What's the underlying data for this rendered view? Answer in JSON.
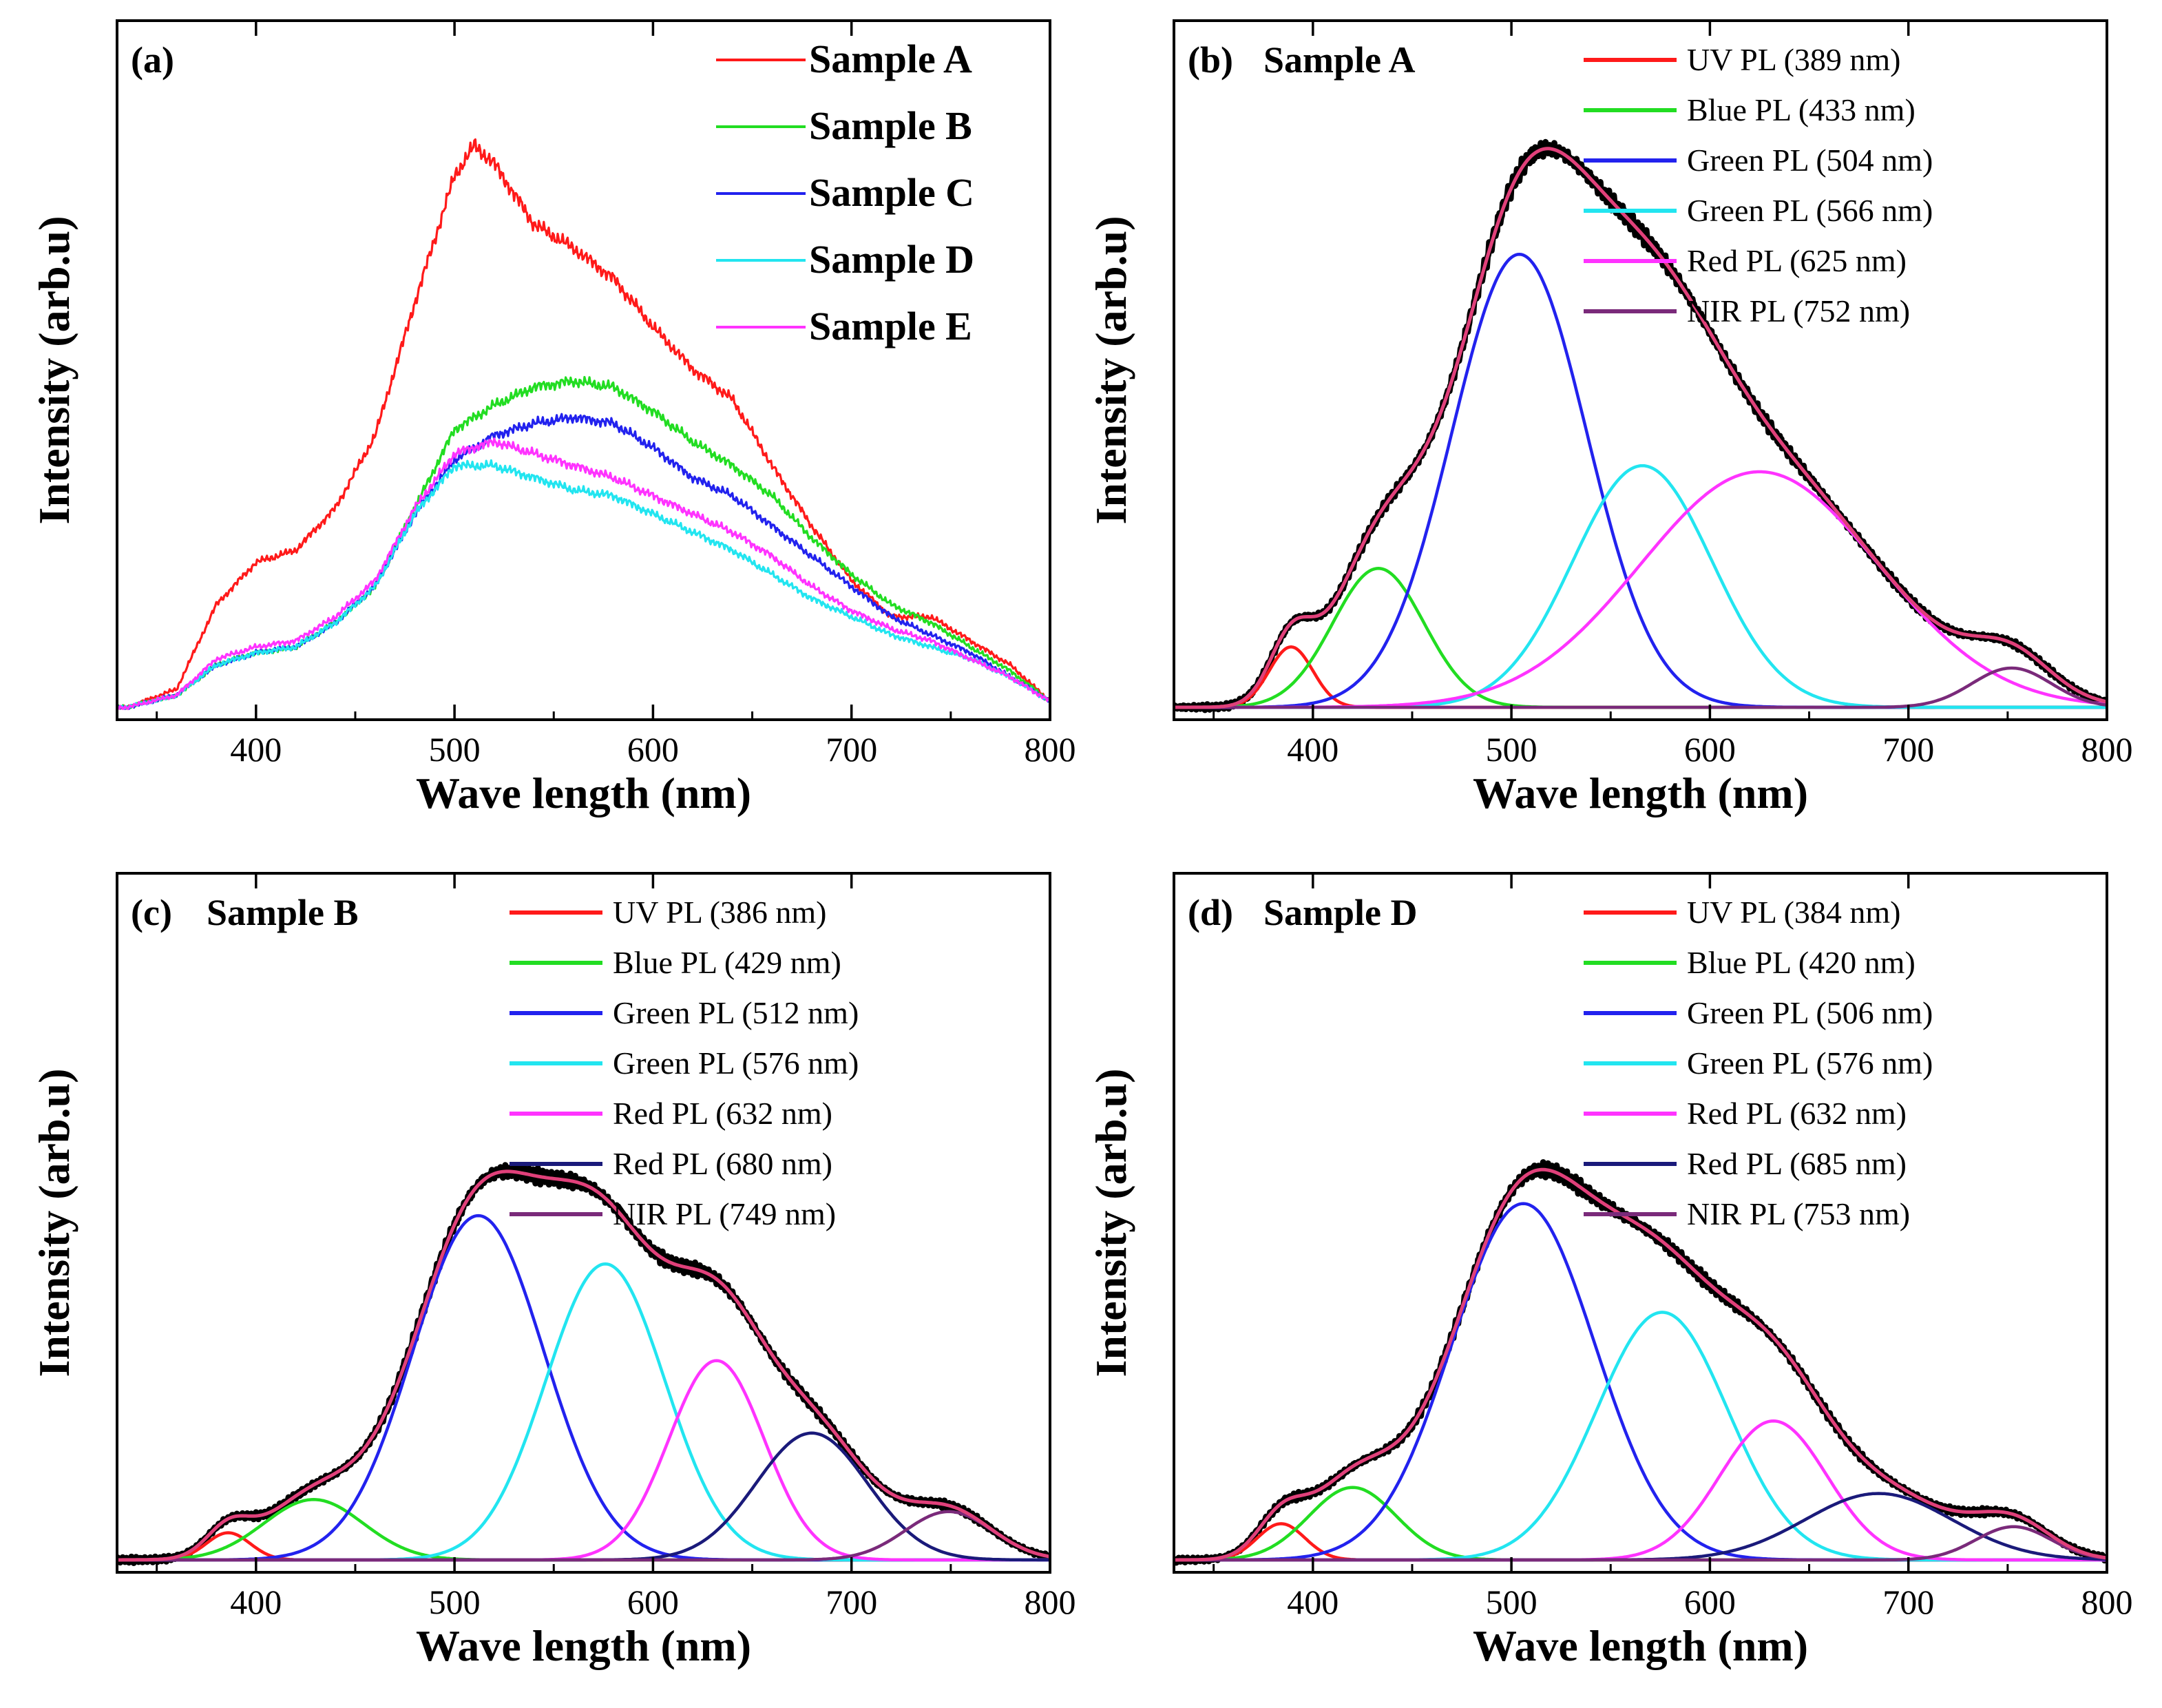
{
  "chart_data": [
    {
      "type": "line",
      "panel": "(a)",
      "title": "",
      "xlabel": "Wave length (nm)",
      "ylabel": "Intensity (arb.u)",
      "xlim": [
        330,
        800
      ],
      "ylim": [
        0,
        1.0
      ],
      "xticks": [
        400,
        500,
        600,
        700,
        800
      ],
      "yticks_shown": false,
      "legend_position": "top-right",
      "series": [
        {
          "name": "Sample A",
          "color": "#ff1a1a",
          "x": [
            335,
            360,
            380,
            400,
            420,
            440,
            460,
            480,
            500,
            510,
            520,
            540,
            560,
            580,
            600,
            620,
            640,
            660,
            680,
            700,
            720,
            740,
            760,
            780,
            800
          ],
          "values": [
            0.0,
            0.03,
            0.17,
            0.24,
            0.26,
            0.33,
            0.45,
            0.67,
            0.88,
            0.93,
            0.9,
            0.8,
            0.76,
            0.71,
            0.63,
            0.56,
            0.51,
            0.4,
            0.3,
            0.21,
            0.15,
            0.15,
            0.11,
            0.07,
            0.01
          ]
        },
        {
          "name": "Sample B",
          "color": "#22dd22",
          "x": [
            335,
            360,
            380,
            400,
            420,
            440,
            460,
            480,
            500,
            520,
            540,
            560,
            580,
            600,
            620,
            640,
            660,
            680,
            700,
            720,
            740,
            760,
            780,
            800
          ],
          "values": [
            0.0,
            0.02,
            0.07,
            0.09,
            0.1,
            0.14,
            0.2,
            0.33,
            0.46,
            0.5,
            0.53,
            0.54,
            0.53,
            0.49,
            0.44,
            0.4,
            0.35,
            0.28,
            0.22,
            0.17,
            0.14,
            0.1,
            0.06,
            0.01
          ]
        },
        {
          "name": "Sample C",
          "color": "#2222ee",
          "x": [
            335,
            360,
            380,
            400,
            420,
            440,
            460,
            480,
            500,
            520,
            540,
            560,
            580,
            600,
            620,
            640,
            660,
            680,
            700,
            720,
            740,
            760,
            780,
            800
          ],
          "values": [
            0.0,
            0.02,
            0.07,
            0.09,
            0.1,
            0.14,
            0.2,
            0.32,
            0.41,
            0.45,
            0.47,
            0.48,
            0.47,
            0.43,
            0.38,
            0.35,
            0.3,
            0.25,
            0.2,
            0.15,
            0.12,
            0.09,
            0.05,
            0.01
          ]
        },
        {
          "name": "Sample D",
          "color": "#22e5f0",
          "x": [
            335,
            360,
            380,
            400,
            420,
            440,
            460,
            480,
            500,
            520,
            540,
            560,
            580,
            600,
            620,
            640,
            660,
            680,
            700,
            720,
            740,
            760,
            780,
            800
          ],
          "values": [
            0.0,
            0.02,
            0.07,
            0.09,
            0.1,
            0.14,
            0.2,
            0.32,
            0.4,
            0.4,
            0.38,
            0.36,
            0.35,
            0.32,
            0.29,
            0.26,
            0.22,
            0.18,
            0.15,
            0.12,
            0.1,
            0.08,
            0.05,
            0.01
          ]
        },
        {
          "name": "Sample E",
          "color": "#ff33ff",
          "x": [
            335,
            360,
            380,
            400,
            420,
            440,
            460,
            480,
            500,
            520,
            540,
            560,
            580,
            600,
            620,
            640,
            660,
            680,
            700,
            720,
            740,
            760,
            780,
            800
          ],
          "values": [
            0.0,
            0.02,
            0.08,
            0.1,
            0.11,
            0.15,
            0.21,
            0.33,
            0.42,
            0.44,
            0.42,
            0.4,
            0.38,
            0.35,
            0.32,
            0.29,
            0.25,
            0.2,
            0.16,
            0.13,
            0.11,
            0.08,
            0.05,
            0.01
          ]
        }
      ]
    },
    {
      "type": "line",
      "panel": "(b)",
      "title": "Sample A",
      "xlabel": "Wave length (nm)",
      "ylabel": "Intensity (arb.u)",
      "xlim": [
        330,
        800
      ],
      "ylim": [
        0,
        1.0
      ],
      "xticks": [
        400,
        500,
        600,
        700,
        800
      ],
      "yticks_shown": false,
      "legend_position": "top-right",
      "measured_color": "#000000",
      "fit_color": "#e0407a",
      "components": [
        {
          "name": "UV PL (389 nm)",
          "color": "#ff1a1a",
          "center": 389,
          "height": 0.1,
          "width": 11
        },
        {
          "name": "Blue PL (433 nm)",
          "color": "#22dd22",
          "center": 433,
          "height": 0.23,
          "width": 23
        },
        {
          "name": "Green PL (504 nm)",
          "color": "#2222ee",
          "center": 504,
          "height": 0.75,
          "width": 34
        },
        {
          "name": "Green PL (566 nm)",
          "color": "#22e5f0",
          "center": 566,
          "height": 0.4,
          "width": 35
        },
        {
          "name": "Red PL (625 nm)",
          "color": "#ff33ff",
          "center": 625,
          "height": 0.39,
          "width": 60
        },
        {
          "name": "NIR PL (752 nm)",
          "color": "#7a2a7a",
          "center": 752,
          "height": 0.065,
          "width": 20
        }
      ]
    },
    {
      "type": "line",
      "panel": "(c)",
      "title": "Sample B",
      "xlabel": "Wave length (nm)",
      "ylabel": "Intensity (arb.u)",
      "xlim": [
        330,
        800
      ],
      "ylim": [
        0,
        1.0
      ],
      "xticks": [
        400,
        500,
        600,
        700,
        800
      ],
      "yticks_shown": false,
      "legend_position": "top-right",
      "measured_color": "#000000",
      "fit_color": "#e0407a",
      "components": [
        {
          "name": "UV PL (386 nm)",
          "color": "#ff1a1a",
          "center": 386,
          "height": 0.045,
          "width": 11
        },
        {
          "name": "Blue PL (429 nm)",
          "color": "#22dd22",
          "center": 429,
          "height": 0.1,
          "width": 25
        },
        {
          "name": "Green PL (512 nm)",
          "color": "#2222ee",
          "center": 512,
          "height": 0.57,
          "width": 33
        },
        {
          "name": "Green PL (576 nm)",
          "color": "#22e5f0",
          "center": 576,
          "height": 0.49,
          "width": 30
        },
        {
          "name": "Red PL (632 nm)",
          "color": "#ff33ff",
          "center": 632,
          "height": 0.33,
          "width": 24
        },
        {
          "name": "Red PL (680 nm)",
          "color": "#1a1a7a",
          "center": 680,
          "height": 0.21,
          "width": 28
        },
        {
          "name": "NIR PL (749 nm)",
          "color": "#7a2a7a",
          "center": 749,
          "height": 0.08,
          "width": 22
        }
      ]
    },
    {
      "type": "line",
      "panel": "(d)",
      "title": "Sample D",
      "xlabel": "Wave length (nm)",
      "ylabel": "Intensity (arb.u)",
      "xlim": [
        330,
        800
      ],
      "ylim": [
        0,
        1.0
      ],
      "xticks": [
        400,
        500,
        600,
        700,
        800
      ],
      "yticks_shown": false,
      "legend_position": "top-right",
      "measured_color": "#000000",
      "fit_color": "#e0407a",
      "components": [
        {
          "name": "UV PL (384 nm)",
          "color": "#ff1a1a",
          "center": 384,
          "height": 0.06,
          "width": 12
        },
        {
          "name": "Blue PL (420 nm)",
          "color": "#22dd22",
          "center": 420,
          "height": 0.12,
          "width": 22
        },
        {
          "name": "Green PL (506 nm)",
          "color": "#2222ee",
          "center": 506,
          "height": 0.59,
          "width": 36
        },
        {
          "name": "Green PL (576 nm)",
          "color": "#22e5f0",
          "center": 576,
          "height": 0.41,
          "width": 33
        },
        {
          "name": "Red PL (632 nm)",
          "color": "#ff33ff",
          "center": 632,
          "height": 0.23,
          "width": 27
        },
        {
          "name": "Red PL (685 nm)",
          "color": "#1a1a7a",
          "center": 685,
          "height": 0.11,
          "width": 37
        },
        {
          "name": "NIR PL (753 nm)",
          "color": "#7a2a7a",
          "center": 753,
          "height": 0.055,
          "width": 19
        }
      ]
    }
  ]
}
